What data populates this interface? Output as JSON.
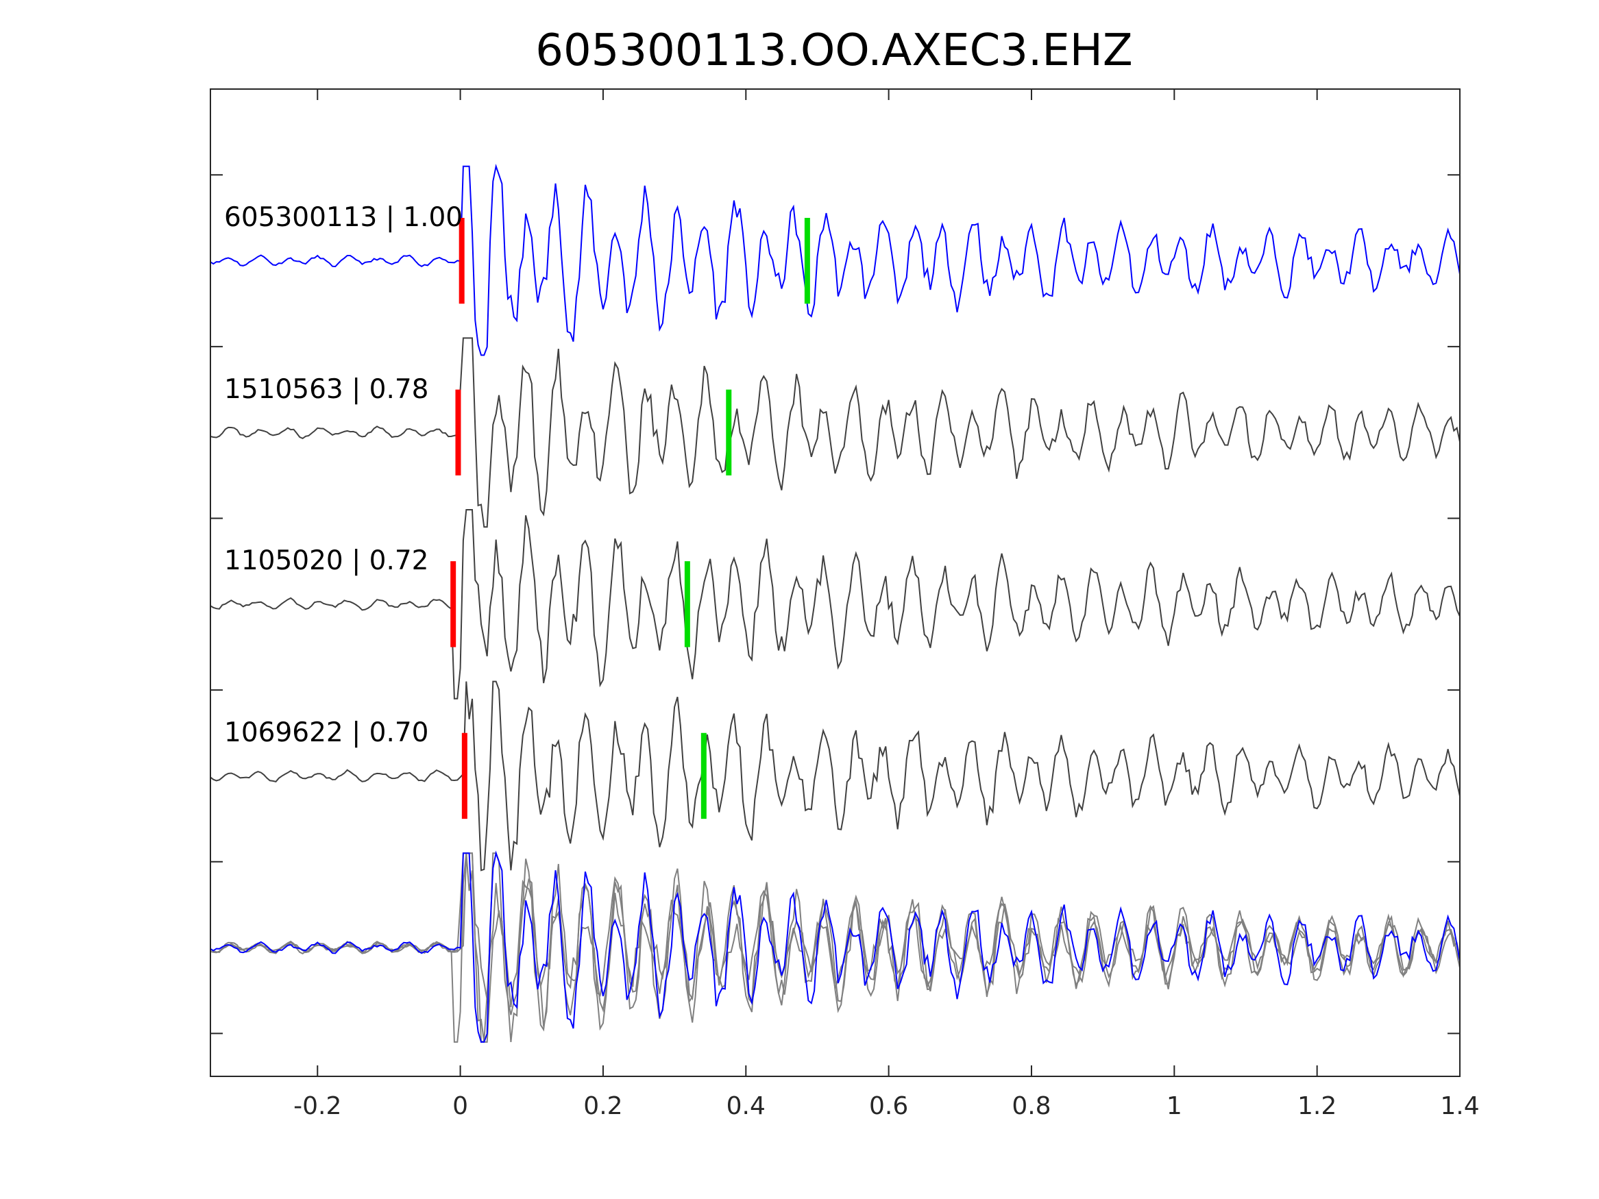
{
  "chart_data": {
    "type": "line",
    "title": "605300113.OO.AXEC3.EHZ",
    "xlabel": "",
    "ylabel": "",
    "xlim": [
      -0.35,
      1.4
    ],
    "ylim": [
      -4.75,
      1
    ],
    "xticks": [
      -0.2,
      0,
      0.2,
      0.4,
      0.6,
      0.8,
      1,
      1.2,
      1.4
    ],
    "xtick_labels": [
      "-0.2",
      "0",
      "0.2",
      "0.4",
      "0.6",
      "0.8",
      "1",
      "1.2",
      "1.4"
    ],
    "yticks": [
      0.5,
      -0.5,
      -1.5,
      -2.5,
      -3.5,
      -4.5
    ],
    "grid": false,
    "colors": {
      "template": "#0000ff",
      "match": "#404040",
      "overlay": "#808080",
      "p_pick": "#ff0000",
      "s_pick": "#00dd00",
      "axis": "#262626"
    },
    "traces": [
      {
        "label": "605300113 | 1.00",
        "offset": 0,
        "color": "template",
        "p_pick": 0.002,
        "s_pick": 0.486,
        "seed": 11
      },
      {
        "label": "1510563 | 0.78",
        "offset": -1,
        "color": "match",
        "p_pick": -0.003,
        "s_pick": 0.376,
        "seed": 23
      },
      {
        "label": "1105020 | 0.72",
        "offset": -2,
        "color": "match",
        "p_pick": -0.01,
        "s_pick": 0.318,
        "seed": 37
      },
      {
        "label": "1069622 | 0.70",
        "offset": -3,
        "color": "match",
        "p_pick": 0.006,
        "s_pick": 0.341,
        "seed": 51
      }
    ],
    "overlay_offset": -4
  }
}
